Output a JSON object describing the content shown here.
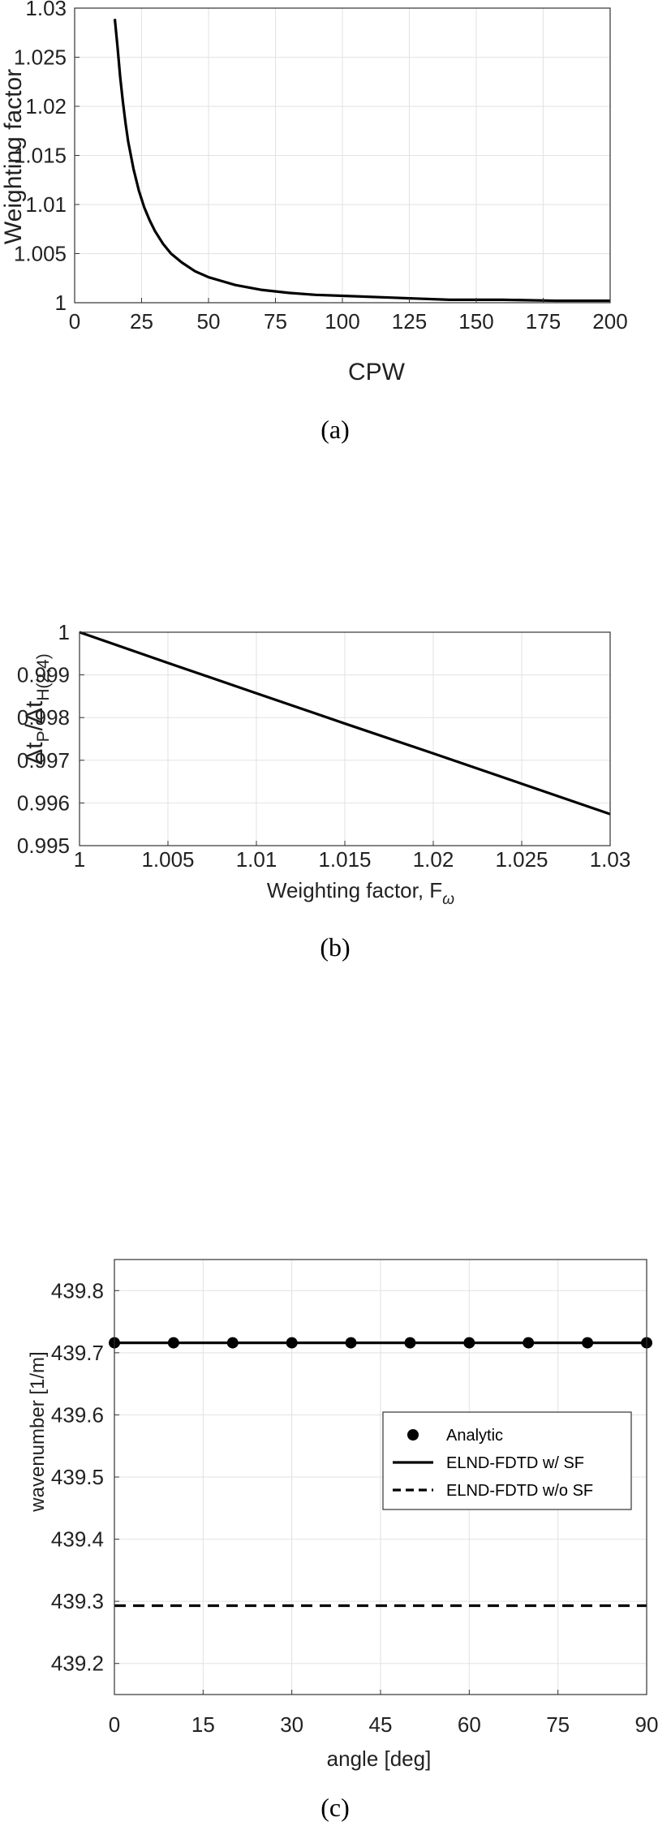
{
  "chart_data": [
    {
      "type": "line",
      "panel_label": "(a)",
      "xlabel": "CPW",
      "ylabel": "Weighting factor",
      "xlim": [
        0,
        200
      ],
      "ylim": [
        1,
        1.03
      ],
      "xticks": [
        "0",
        "25",
        "50",
        "75",
        "100",
        "125",
        "150",
        "175",
        "200"
      ],
      "yticks": [
        "1",
        "1.005",
        "1.01",
        "1.015",
        "1.02",
        "1.025",
        "1.03"
      ],
      "grid": true,
      "series": [
        {
          "x": [
            15,
            16,
            17,
            18,
            19,
            20,
            22,
            24,
            26,
            28,
            30,
            33,
            36,
            40,
            45,
            50,
            55,
            60,
            70,
            80,
            90,
            100,
            120,
            140,
            160,
            180,
            200
          ],
          "y": [
            1.0289,
            1.0261,
            1.023,
            1.0205,
            1.0183,
            1.0164,
            1.0136,
            1.0114,
            1.0097,
            1.0084,
            1.0073,
            1.006,
            1.005,
            1.0041,
            1.0032,
            1.0026,
            1.0022,
            1.0018,
            1.0013,
            1.001,
            1.0008,
            1.0007,
            1.0005,
            1.0003,
            1.0003,
            1.0002,
            1.0002
          ]
        }
      ]
    },
    {
      "type": "line",
      "panel_label": "(b)",
      "xlabel": "Weighting factor, F",
      "xlabel_sub": "ω",
      "ylabel": "Δt",
      "ylabel_sub1": "P",
      "ylabel_mid": "/Δt",
      "ylabel_sub2": "H(2,4)",
      "xlim": [
        1,
        1.03
      ],
      "ylim": [
        0.995,
        1
      ],
      "xticks": [
        "1",
        "1.005",
        "1.01",
        "1.015",
        "1.02",
        "1.025",
        "1.03"
      ],
      "yticks": [
        "0.995",
        "0.996",
        "0.997",
        "0.998",
        "0.999",
        "1"
      ],
      "grid": true,
      "series": [
        {
          "x": [
            1,
            1.005,
            1.01,
            1.015,
            1.02,
            1.025,
            1.03
          ],
          "y": [
            1.0,
            0.99928,
            0.99857,
            0.99786,
            0.99716,
            0.99645,
            0.99574
          ]
        }
      ]
    },
    {
      "type": "line",
      "panel_label": "(c)",
      "xlabel": "angle [deg]",
      "ylabel": "wavenumber [1/m]",
      "xlim": [
        0,
        90
      ],
      "ylim": [
        439.15,
        439.85
      ],
      "xticks": [
        "0",
        "15",
        "30",
        "45",
        "60",
        "75",
        "90"
      ],
      "yticks": [
        "439.2",
        "439.3",
        "439.4",
        "439.5",
        "439.6",
        "439.7",
        "439.8"
      ],
      "grid": true,
      "legend_position": "upper-right",
      "series": [
        {
          "name": "Analytic",
          "style": "markers",
          "x": [
            0,
            10,
            20,
            30,
            40,
            50,
            60,
            70,
            80,
            90
          ],
          "y": [
            439.716,
            439.716,
            439.716,
            439.716,
            439.716,
            439.716,
            439.716,
            439.716,
            439.716,
            439.716
          ]
        },
        {
          "name": "ELND-FDTD w/ SF",
          "style": "solid",
          "x": [
            0,
            90
          ],
          "y": [
            439.716,
            439.716
          ]
        },
        {
          "name": "ELND-FDTD w/o SF",
          "style": "dashed",
          "x": [
            0,
            90
          ],
          "y": [
            439.293,
            439.293
          ]
        }
      ]
    }
  ]
}
